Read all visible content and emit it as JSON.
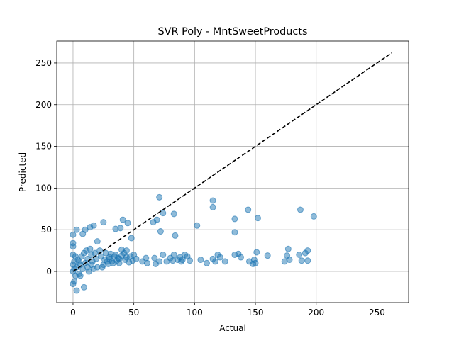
{
  "chart_data": {
    "type": "scatter",
    "title": "SVR Poly - MntSweetProducts",
    "xlabel": "Actual",
    "ylabel": "Predicted",
    "series": [
      {
        "color": "#1f77b4",
        "x": [
          198,
          187,
          193,
          191,
          186,
          188,
          193,
          178,
          174,
          176,
          177,
          160,
          152,
          151,
          149,
          150,
          148,
          145,
          144,
          138,
          136,
          133,
          133,
          133,
          125,
          121,
          119,
          117,
          115,
          115,
          115,
          110,
          105,
          102,
          96,
          94,
          92,
          90,
          89,
          88,
          86,
          83,
          82,
          80,
          83,
          84,
          77,
          74,
          74,
          71,
          72,
          71,
          69,
          66,
          68,
          67,
          61,
          60,
          57,
          52,
          49,
          46,
          44,
          45,
          48,
          41,
          39,
          35,
          40,
          38,
          35,
          32,
          30,
          27,
          25,
          20,
          17,
          14,
          10,
          8,
          3,
          0,
          0,
          0,
          1,
          0,
          3,
          9,
          2,
          5,
          8,
          10,
          12,
          15,
          18,
          22,
          20,
          25,
          28,
          30,
          33,
          36,
          40,
          42,
          44,
          38,
          15,
          12,
          6,
          4,
          2,
          0,
          1,
          0,
          1,
          0,
          3,
          5,
          7,
          9,
          11,
          14,
          16,
          19,
          23,
          26,
          29,
          31,
          34,
          37,
          43,
          47,
          50,
          24,
          13,
          6,
          17
        ],
        "y": [
          66,
          74,
          25,
          22,
          20,
          13,
          13,
          14,
          12,
          19,
          27,
          19,
          64,
          23,
          14,
          10,
          9,
          12,
          74,
          17,
          21,
          47,
          63,
          20,
          12,
          17,
          20,
          12,
          15,
          85,
          77,
          10,
          14,
          55,
          13,
          18,
          20,
          14,
          12,
          17,
          14,
          20,
          13,
          16,
          69,
          43,
          12,
          20,
          70,
          12,
          48,
          89,
          62,
          59,
          9,
          16,
          10,
          16,
          12,
          15,
          13,
          11,
          17,
          58,
          40,
          62,
          52,
          51,
          26,
          15,
          20,
          12,
          17,
          22,
          59,
          36,
          55,
          53,
          50,
          45,
          50,
          44,
          34,
          30,
          -12,
          -15,
          -23,
          -19,
          -5,
          -3,
          3,
          10,
          15,
          20,
          22,
          25,
          5,
          8,
          12,
          15,
          10,
          13,
          19,
          22,
          25,
          10,
          8,
          5,
          8,
          14,
          18,
          20,
          12,
          8,
          3,
          0,
          5,
          12,
          18,
          22,
          25,
          27,
          12,
          15,
          18,
          14,
          9,
          21,
          18,
          16,
          14,
          18,
          20,
          5,
          0,
          -5,
          3
        ]
      }
    ],
    "reference_line": {
      "x": [
        0,
        262
      ],
      "y": [
        0,
        262
      ],
      "color": "#000000",
      "style": "dashed"
    },
    "xlim": [
      -13.4,
      276
    ],
    "ylim": [
      -37.4,
      276.3
    ],
    "xticks": [
      0,
      50,
      100,
      150,
      200,
      250
    ],
    "yticks": [
      0,
      50,
      100,
      150,
      200,
      250
    ],
    "grid": true
  }
}
